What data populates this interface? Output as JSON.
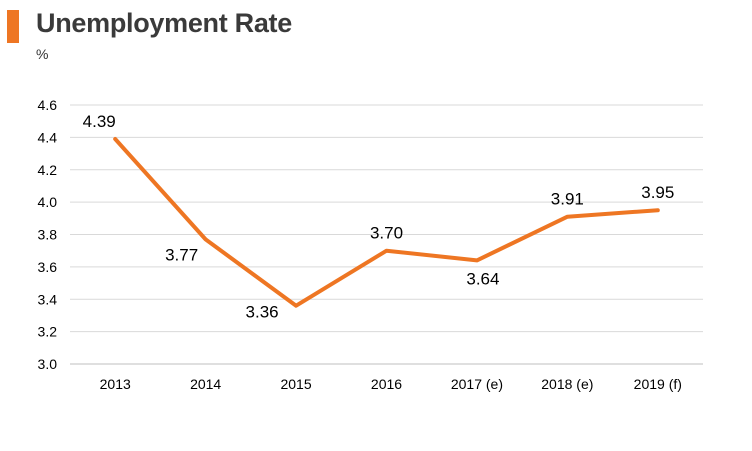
{
  "header": {
    "title": "Unemployment Rate",
    "unit": "%",
    "accent_color": "#ee7623"
  },
  "chart_data": {
    "type": "line",
    "title": "Unemployment Rate",
    "ylabel": "%",
    "xlabel": "",
    "categories": [
      "2013",
      "2014",
      "2015",
      "2016",
      "2017 (e)",
      "2018 (e)",
      "2019 (f)"
    ],
    "series": [
      {
        "values": [
          4.39,
          3.77,
          3.36,
          3.7,
          3.64,
          3.91,
          3.95
        ],
        "labels": [
          "4.39",
          "3.77",
          "3.36",
          "3.70",
          "3.64",
          "3.91",
          "3.95"
        ],
        "color": "#ee7623"
      }
    ],
    "ylim": [
      3.0,
      4.6
    ],
    "yticks": [
      "3.0",
      "3.2",
      "3.4",
      "3.6",
      "3.8",
      "4.0",
      "4.2",
      "4.4",
      "4.6"
    ],
    "grid": true,
    "legend": "none",
    "gridline_color": "#d9d9d9"
  }
}
